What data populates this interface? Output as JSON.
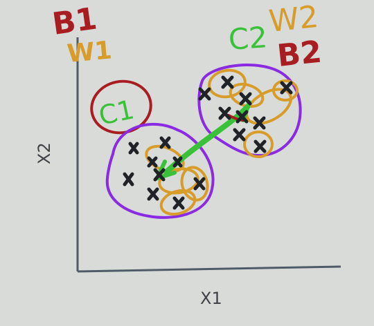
{
  "axes": {
    "x_label": "X1",
    "y_label": "X2"
  },
  "annotations": {
    "top_left_red": "B1",
    "top_left_orange": "W1",
    "left_circle_label": "C1",
    "right_cluster_green": "C2",
    "right_cluster_orange": "W2",
    "right_cluster_red": "B2"
  },
  "clusters": {
    "left_points": 9,
    "right_points": 9
  },
  "colors": {
    "background": "#d9dbd8",
    "axis": "#4f5b66",
    "red": "#a81d21",
    "orange": "#d79c2a",
    "purple": "#8a2be2",
    "green": "#39c13a",
    "ink": "#1f2328"
  }
}
